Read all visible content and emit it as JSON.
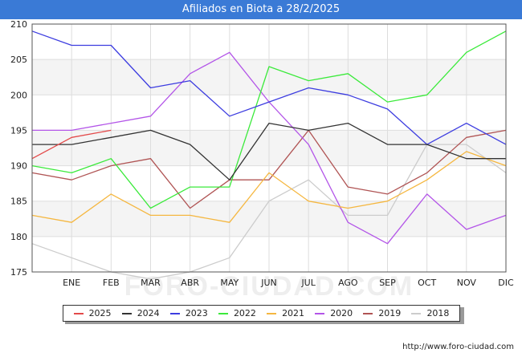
{
  "title": "Afiliados en Biota a 28/2/2025",
  "source": "http://www.foro-ciudad.com",
  "watermark": "FORO-CIUDAD.COM",
  "chart_data": {
    "type": "line",
    "title": "Afiliados en Biota a 28/2/2025",
    "xlabel": "",
    "ylabel": "",
    "categories": [
      "",
      "ENE",
      "FEB",
      "MAR",
      "ABR",
      "MAY",
      "JUN",
      "JUL",
      "AGO",
      "SEP",
      "OCT",
      "NOV",
      "DIC"
    ],
    "ylim": [
      175,
      210
    ],
    "yticks": [
      175,
      180,
      185,
      190,
      195,
      200,
      205,
      210
    ],
    "grid": true,
    "legend": "bottom",
    "series": [
      {
        "name": "2025",
        "color": "#e34a4a",
        "values": [
          191,
          194,
          195,
          null,
          null,
          null,
          null,
          null,
          null,
          null,
          null,
          null,
          null
        ]
      },
      {
        "name": "2024",
        "color": "#333333",
        "values": [
          193,
          193,
          194,
          195,
          193,
          188,
          196,
          195,
          196,
          193,
          193,
          191,
          191
        ]
      },
      {
        "name": "2023",
        "color": "#3d3de0",
        "values": [
          209,
          207,
          207,
          201,
          202,
          197,
          199,
          201,
          200,
          198,
          193,
          196,
          193
        ]
      },
      {
        "name": "2022",
        "color": "#3bea3b",
        "values": [
          190,
          189,
          191,
          184,
          187,
          187,
          204,
          202,
          203,
          199,
          200,
          206,
          209
        ]
      },
      {
        "name": "2021",
        "color": "#f5b740",
        "values": [
          183,
          182,
          186,
          183,
          183,
          182,
          189,
          185,
          184,
          185,
          188,
          192,
          190
        ]
      },
      {
        "name": "2020",
        "color": "#b355e8",
        "values": [
          195,
          195,
          196,
          197,
          203,
          206,
          199,
          193,
          182,
          179,
          186,
          181,
          183
        ]
      },
      {
        "name": "2019",
        "color": "#b05454",
        "values": [
          189,
          188,
          190,
          191,
          184,
          188,
          188,
          195,
          187,
          186,
          189,
          194,
          195
        ]
      },
      {
        "name": "2018",
        "color": "#cccccc",
        "values": [
          179,
          177,
          175,
          174,
          175,
          177,
          185,
          188,
          183,
          183,
          193,
          193,
          189
        ]
      }
    ]
  }
}
